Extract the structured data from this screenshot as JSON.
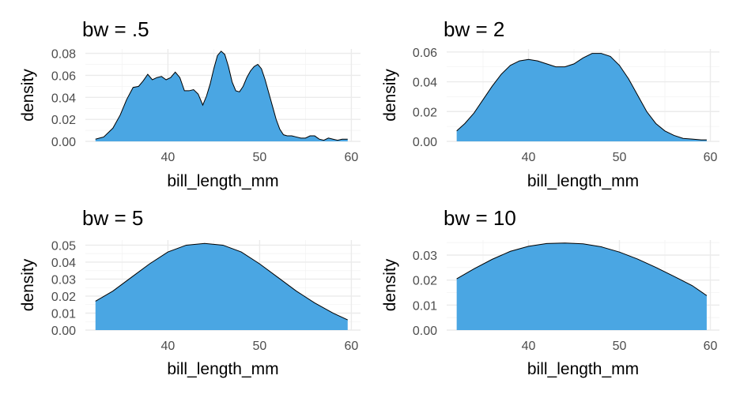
{
  "colors": {
    "fill": "#4aa6e3",
    "outline": "#000000",
    "grid_major": "#ebebeb",
    "grid_minor": "#f3f3f3",
    "tick_text": "#4d4d4d"
  },
  "chart_data": [
    {
      "type": "area",
      "title": "bw = .5",
      "xlabel": "bill_length_mm",
      "ylabel": "density",
      "xlim": [
        31,
        61
      ],
      "ylim": [
        0,
        0.084
      ],
      "xticks": [
        40,
        50,
        60
      ],
      "xtick_labels": [
        "40",
        "50",
        "60"
      ],
      "yticks": [
        0,
        0.02,
        0.04,
        0.06,
        0.08
      ],
      "ytick_labels": [
        "0.00",
        "0.02",
        "0.04",
        "0.06",
        "0.08"
      ],
      "grid": true,
      "x": [
        32.1,
        33,
        34,
        34.8,
        35.5,
        36.2,
        36.8,
        37.3,
        37.8,
        38.3,
        38.8,
        39.3,
        39.8,
        40.3,
        40.8,
        41.3,
        41.8,
        42.3,
        42.8,
        43.3,
        43.8,
        44.2,
        44.6,
        45,
        45.4,
        45.8,
        46.2,
        46.6,
        47,
        47.4,
        47.8,
        48.2,
        48.6,
        49,
        49.4,
        49.8,
        50.2,
        50.6,
        51,
        51.4,
        51.8,
        52.2,
        52.6,
        53,
        53.5,
        54,
        54.5,
        55,
        55.5,
        56,
        56.5,
        57,
        57.5,
        58,
        58.5,
        59,
        59.6
      ],
      "y": [
        0.002,
        0.004,
        0.012,
        0.024,
        0.038,
        0.049,
        0.05,
        0.055,
        0.061,
        0.056,
        0.058,
        0.059,
        0.056,
        0.058,
        0.063,
        0.058,
        0.046,
        0.046,
        0.047,
        0.043,
        0.033,
        0.041,
        0.052,
        0.066,
        0.078,
        0.082,
        0.079,
        0.068,
        0.054,
        0.046,
        0.045,
        0.05,
        0.058,
        0.064,
        0.068,
        0.07,
        0.066,
        0.056,
        0.044,
        0.032,
        0.02,
        0.011,
        0.006,
        0.005,
        0.005,
        0.004,
        0.003,
        0.003,
        0.005,
        0.005,
        0.002,
        0.001,
        0.003,
        0.002,
        0.001,
        0.002,
        0.002
      ]
    },
    {
      "type": "area",
      "title": "bw = 2",
      "xlabel": "bill_length_mm",
      "ylabel": "density",
      "xlim": [
        31,
        61
      ],
      "ylim": [
        0,
        0.062
      ],
      "xticks": [
        40,
        50,
        60
      ],
      "xtick_labels": [
        "40",
        "50",
        "60"
      ],
      "yticks": [
        0,
        0.02,
        0.04,
        0.06
      ],
      "ytick_labels": [
        "0.00",
        "0.02",
        "0.04",
        "0.06"
      ],
      "grid": true,
      "x": [
        32.1,
        33,
        34,
        35,
        36,
        37,
        38,
        39,
        40,
        41,
        42,
        43,
        44,
        45,
        46,
        47,
        48,
        49,
        50,
        51,
        52,
        53,
        54,
        55,
        56,
        57,
        58,
        59,
        59.6
      ],
      "y": [
        0.007,
        0.012,
        0.019,
        0.028,
        0.037,
        0.045,
        0.051,
        0.054,
        0.055,
        0.054,
        0.052,
        0.05,
        0.05,
        0.052,
        0.056,
        0.059,
        0.059,
        0.057,
        0.051,
        0.042,
        0.031,
        0.02,
        0.012,
        0.007,
        0.004,
        0.002,
        0.0015,
        0.001,
        0.001
      ]
    },
    {
      "type": "area",
      "title": "bw = 5",
      "xlabel": "bill_length_mm",
      "ylabel": "density",
      "xlim": [
        31,
        61
      ],
      "ylim": [
        0,
        0.053
      ],
      "xticks": [
        40,
        50,
        60
      ],
      "xtick_labels": [
        "40",
        "50",
        "60"
      ],
      "yticks": [
        0,
        0.01,
        0.02,
        0.03,
        0.04,
        0.05
      ],
      "ytick_labels": [
        "0.00",
        "0.01",
        "0.02",
        "0.03",
        "0.04",
        "0.05"
      ],
      "grid": true,
      "x": [
        32.1,
        34,
        36,
        38,
        40,
        42,
        44,
        46,
        48,
        50,
        52,
        54,
        56,
        58,
        59.6
      ],
      "y": [
        0.017,
        0.023,
        0.031,
        0.039,
        0.046,
        0.05,
        0.051,
        0.05,
        0.046,
        0.039,
        0.031,
        0.023,
        0.016,
        0.01,
        0.006
      ]
    },
    {
      "type": "area",
      "title": "bw = 10",
      "xlabel": "bill_length_mm",
      "ylabel": "density",
      "xlim": [
        31,
        61
      ],
      "ylim": [
        0,
        0.036
      ],
      "xticks": [
        40,
        50,
        60
      ],
      "xtick_labels": [
        "40",
        "50",
        "60"
      ],
      "yticks": [
        0,
        0.01,
        0.02,
        0.03
      ],
      "ytick_labels": [
        "0.00",
        "0.01",
        "0.02",
        "0.03"
      ],
      "grid": true,
      "x": [
        32.1,
        34,
        36,
        38,
        40,
        42,
        44,
        46,
        48,
        50,
        52,
        54,
        56,
        58,
        59.6
      ],
      "y": [
        0.0205,
        0.0245,
        0.0283,
        0.0315,
        0.0335,
        0.0346,
        0.0348,
        0.0345,
        0.0333,
        0.0312,
        0.0284,
        0.0251,
        0.0215,
        0.0178,
        0.0138
      ]
    }
  ]
}
